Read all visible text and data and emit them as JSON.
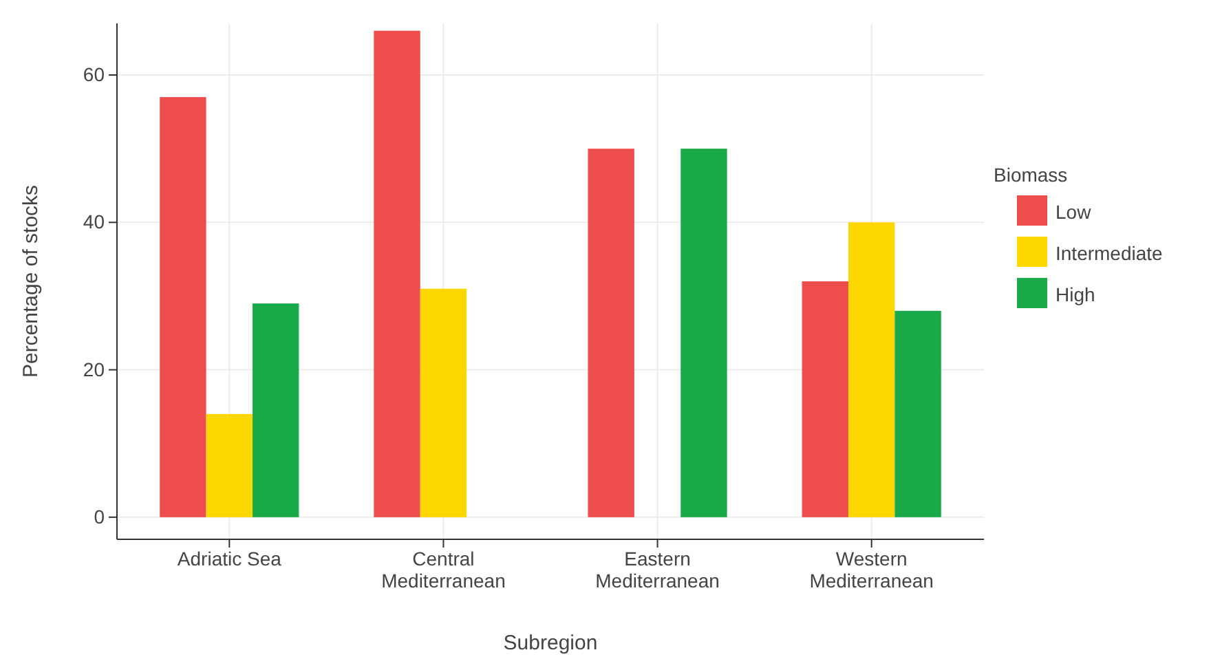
{
  "chart_data": {
    "type": "bar",
    "xlabel": "Subregion",
    "ylabel": "Percentage of stocks",
    "legend_title": "Biomass",
    "categories": [
      "Adriatic Sea",
      "Central Mediterranean",
      "Eastern Mediterranean",
      "Western Mediterranean"
    ],
    "series": [
      {
        "name": "Low",
        "color": "#ee4d4d",
        "values": [
          57,
          66,
          50,
          32
        ]
      },
      {
        "name": "Intermediate",
        "color": "#ffd700",
        "values": [
          14,
          31,
          null,
          40
        ]
      },
      {
        "name": "High",
        "color": "#1aaa4a",
        "values": [
          29,
          null,
          50,
          28
        ]
      }
    ],
    "ylim": [
      -3,
      67
    ],
    "yticks": [
      0,
      20,
      40,
      60
    ],
    "grid": true,
    "legend": "right"
  }
}
